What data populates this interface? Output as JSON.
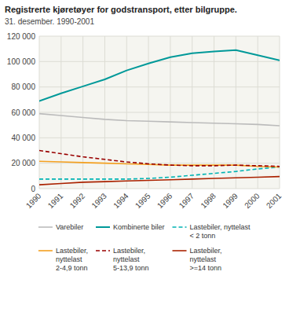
{
  "chart_data": {
    "type": "line",
    "title": "Registrerte kjøretøyer for godstransport, etter bilgruppe.",
    "subtitle": "31. desember. 1990-2001",
    "x": [
      1990,
      1991,
      1992,
      1993,
      1994,
      1995,
      1996,
      1997,
      1998,
      1999,
      2000,
      2001
    ],
    "xlim": [
      1990,
      2001
    ],
    "xticks": [
      1990,
      1991,
      1992,
      1993,
      1994,
      1995,
      1996,
      1997,
      1998,
      1999,
      2000,
      2001
    ],
    "ylim": [
      0,
      120000
    ],
    "yticks": [
      0,
      {
        "value": 20000,
        "label": "20 000"
      },
      {
        "value": 40000,
        "label": "40 000"
      },
      {
        "value": 60000,
        "label": "60 000"
      },
      {
        "value": 80000,
        "label": "80 000"
      },
      {
        "value": 100000,
        "label": "100 000"
      },
      {
        "value": 120000,
        "label": "120 000"
      }
    ],
    "grid": true,
    "legend": "bottom",
    "series": [
      {
        "name": "Varebiler",
        "color": "#bbbbbb",
        "line_style": "solid",
        "values": [
          59000,
          57500,
          56000,
          54500,
          53500,
          53000,
          52500,
          52000,
          51500,
          51000,
          50500,
          49500
        ]
      },
      {
        "name": "Kombinerte biler",
        "color": "#009999",
        "line_style": "solid",
        "values": [
          69000,
          75000,
          80500,
          86000,
          93000,
          98500,
          103500,
          106500,
          108000,
          109000,
          105000,
          101000
        ]
      },
      {
        "name": "Lastebiler, nyttelast\n< 2 tonn",
        "color": "#00b3b3",
        "line_style": "dashed",
        "values": [
          7500,
          7500,
          7500,
          7500,
          7500,
          8000,
          9000,
          10500,
          12000,
          13500,
          15500,
          17000
        ]
      },
      {
        "name": "Lastebiler,\nnyttelast\n2-4,9 tonn",
        "color": "#f4a020",
        "line_style": "solid",
        "values": [
          21500,
          21000,
          20500,
          20000,
          19500,
          19000,
          18500,
          18500,
          18500,
          18500,
          17500,
          17000
        ]
      },
      {
        "name": "Lastebiler,\nnyttelast\n5-13,9 tonn",
        "color": "#990000",
        "line_style": "dashed",
        "values": [
          30000,
          27500,
          25000,
          23000,
          21000,
          19500,
          18500,
          18000,
          18000,
          18500,
          18000,
          17500
        ]
      },
      {
        "name": "Lastebiler,\nnyttelast\n>=14 tonn",
        "color": "#aa2200",
        "line_style": "solid",
        "values": [
          3000,
          4000,
          5000,
          5500,
          6000,
          6500,
          7000,
          7500,
          8000,
          8500,
          9000,
          9500
        ]
      }
    ]
  }
}
